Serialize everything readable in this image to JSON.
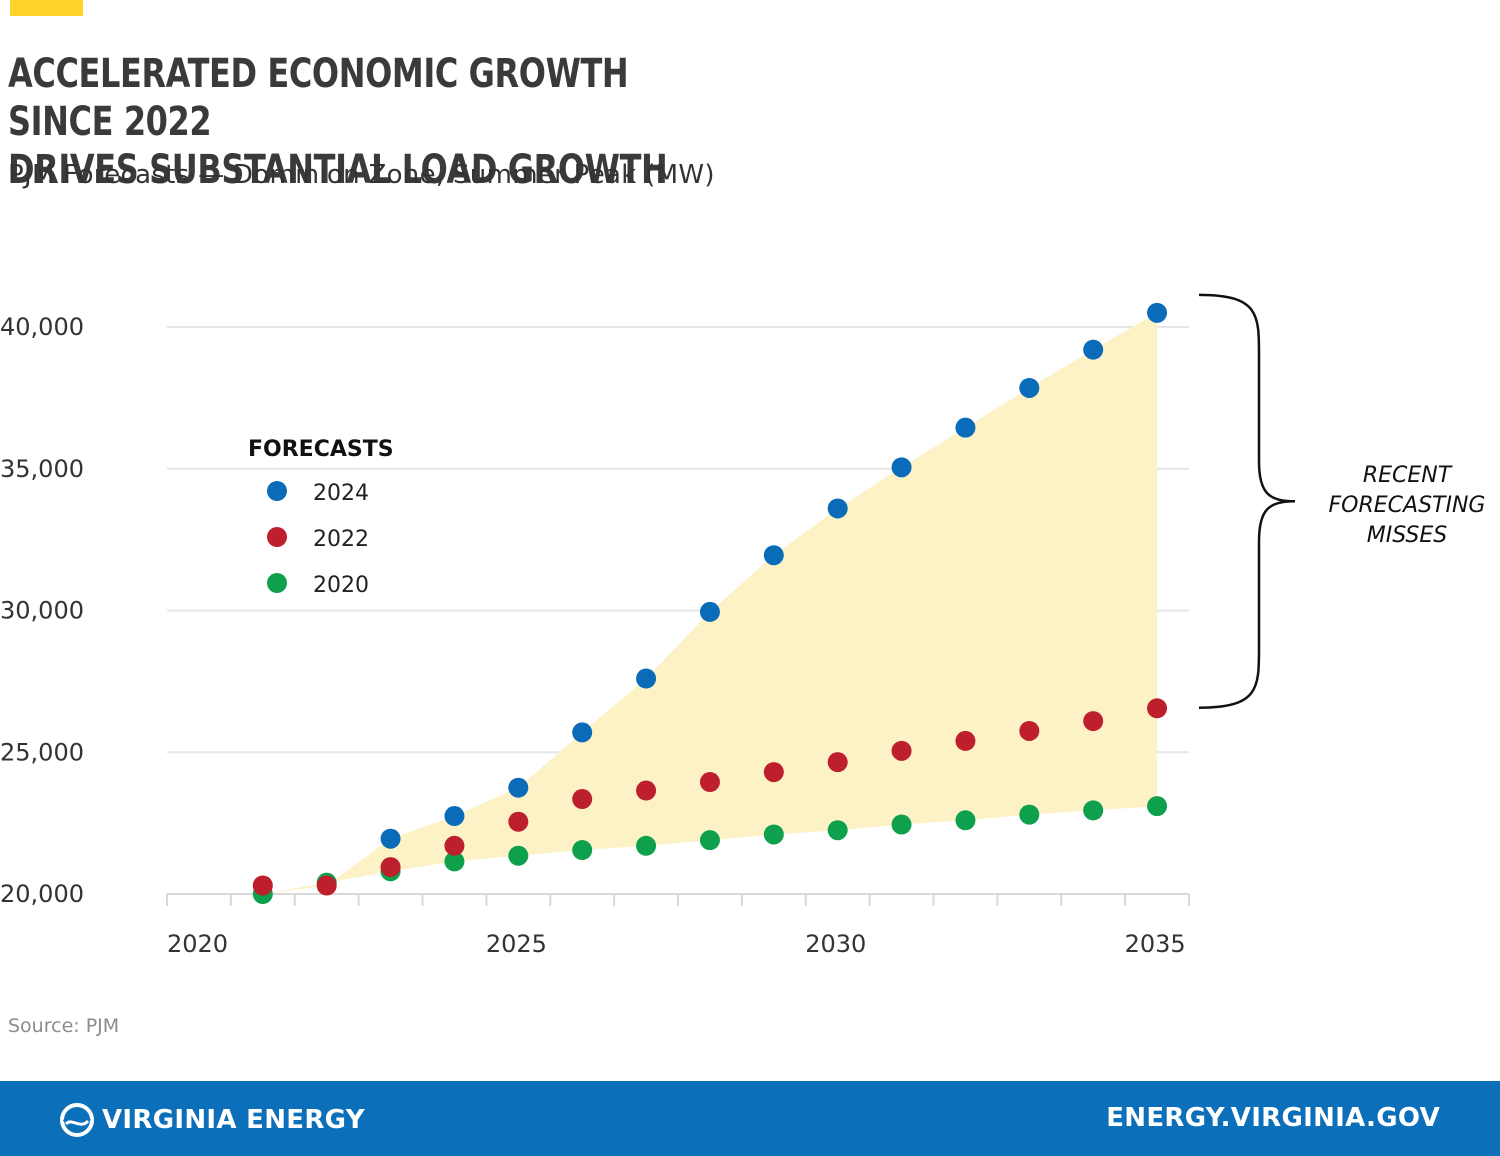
{
  "header": {
    "title_line1": "ACCELERATED ECONOMIC GROWTH SINCE 2022",
    "title_line2": "DRIVES SUBSTANTIAL LOAD GROWTH",
    "subtitle": "PJM Forecasts — Dominion Zone, Summer Peak (MW)",
    "accent_color": "#ffd42a"
  },
  "chart_data": {
    "type": "scatter",
    "title": "ACCELERATED ECONOMIC GROWTH SINCE 2022 DRIVES SUBSTANTIAL LOAD GROWTH",
    "subtitle": "PJM Forecasts — Dominion Zone, Summer Peak (MW)",
    "xlabel": "",
    "ylabel": "",
    "xlim": [
      2019.5,
      2035.5
    ],
    "ylim": [
      20000,
      40000
    ],
    "x_ticks": [
      "2020",
      "2025",
      "2030",
      "2035"
    ],
    "y_ticks": [
      "20,000",
      "25,000",
      "30,000",
      "35,000",
      "40,000"
    ],
    "grid": true,
    "legend_title": "FORECASTS",
    "legend_position": "upper-left",
    "shaded_region": {
      "between": [
        "2024",
        "2020"
      ],
      "color": "#fdf2c6"
    },
    "annotation": {
      "lines": [
        "RECENT",
        "FORECASTING",
        "MISSES"
      ],
      "bracket": "right",
      "from": 40500,
      "to": 26500
    },
    "series": [
      {
        "name": "2024",
        "color": "#0a6cb8",
        "x": [
          2023,
          2024,
          2025,
          2026,
          2027,
          2028,
          2029,
          2030,
          2031,
          2032,
          2033,
          2034,
          2035
        ],
        "values": [
          21950,
          22750,
          23750,
          25700,
          27600,
          29950,
          31950,
          33600,
          35050,
          36450,
          37850,
          39200,
          40500
        ]
      },
      {
        "name": "2022",
        "color": "#bd1f2d",
        "x": [
          2021,
          2022,
          2023,
          2024,
          2025,
          2026,
          2027,
          2028,
          2029,
          2030,
          2031,
          2032,
          2033,
          2034,
          2035
        ],
        "values": [
          20300,
          20300,
          20950,
          21700,
          22550,
          23350,
          23650,
          23950,
          24300,
          24650,
          25050,
          25400,
          25750,
          26100,
          26550
        ]
      },
      {
        "name": "2020",
        "color": "#0fa04e",
        "x": [
          2021,
          2022,
          2023,
          2024,
          2025,
          2026,
          2027,
          2028,
          2029,
          2030,
          2031,
          2032,
          2033,
          2034,
          2035
        ],
        "values": [
          20000,
          20400,
          20800,
          21150,
          21350,
          21550,
          21700,
          21900,
          22100,
          22250,
          22450,
          22600,
          22800,
          22950,
          23100
        ]
      }
    ]
  },
  "source": "Source: PJM",
  "footer": {
    "brand": "VIRGINIA ENERGY",
    "url": "ENERGY.VIRGINIA.GOV",
    "background": "#0b70b9",
    "logo_icon": "swirl-logo-icon"
  }
}
